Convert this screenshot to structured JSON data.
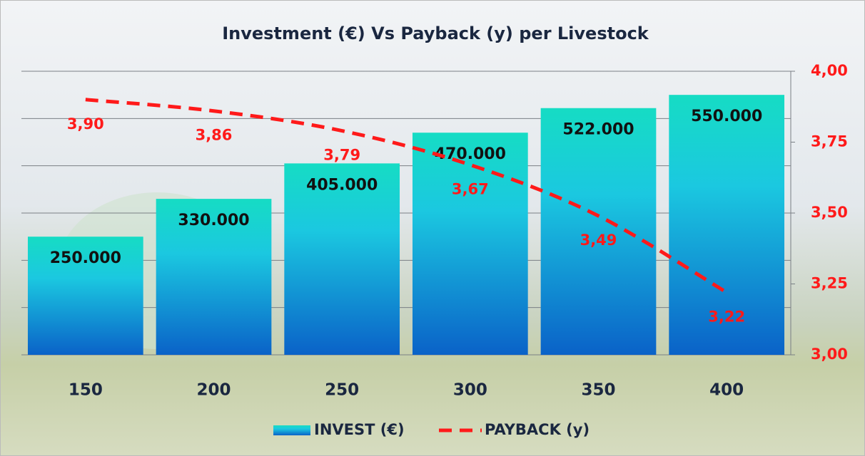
{
  "chart_data": {
    "type": "bar-line",
    "title": "Investment (€) Vs Payback (y) per Livestock",
    "categories": [
      "150",
      "200",
      "250",
      "300",
      "350",
      "400"
    ],
    "series": [
      {
        "name": "INVEST (€)",
        "type": "bar",
        "color": "#1a8ee0",
        "values": [
          250000,
          330000,
          405000,
          470000,
          522000,
          550000
        ],
        "value_labels": [
          "250.000",
          "330.000",
          "405.000",
          "470.000",
          "522.000",
          "550.000"
        ]
      },
      {
        "name": "PAYBACK (y)",
        "type": "line",
        "axis": "y2",
        "color": "#ff1a1a",
        "values": [
          3.9,
          3.86,
          3.79,
          3.67,
          3.49,
          3.22
        ],
        "value_labels": [
          "3,90",
          "3,86",
          "3,79",
          "3,67",
          "3,49",
          "3,22"
        ]
      }
    ],
    "ylim": [
      0,
      600000
    ],
    "yticks": [
      0,
      100000,
      200000,
      300000,
      400000,
      500000,
      600000
    ],
    "y2lim": [
      3,
      4
    ],
    "y2ticks": [
      {
        "value": 3,
        "label": "3,00"
      },
      {
        "value": 3.25,
        "label": "3,25"
      },
      {
        "value": 3.5,
        "label": "3,50"
      },
      {
        "value": 3.75,
        "label": "3,75"
      },
      {
        "value": 4,
        "label": "4,00"
      }
    ],
    "grid": true,
    "legend": "bottom"
  }
}
